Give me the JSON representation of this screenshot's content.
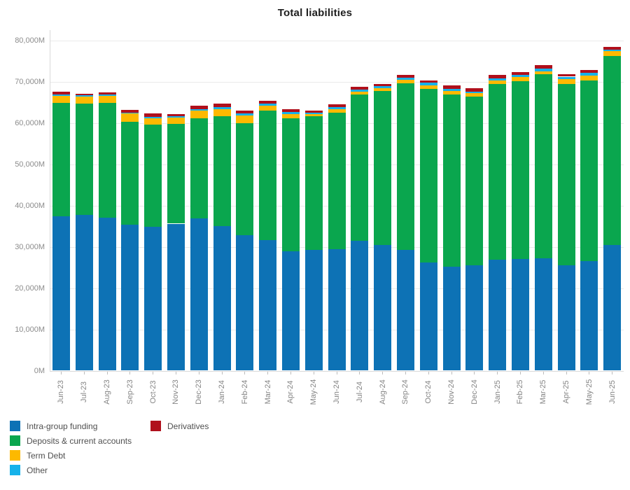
{
  "title": "Total liabilities",
  "chart_data": {
    "type": "bar",
    "stacked": true,
    "title": "Total liabilities",
    "unit": "M",
    "grid": true,
    "ylim": [
      0,
      80000
    ],
    "ytick_step": 10000,
    "ytick_labels": [
      "0M",
      "10,000M",
      "20,000M",
      "30,000M",
      "40,000M",
      "50,000M",
      "60,000M",
      "70,000M",
      "80,000M"
    ],
    "legend_position": "bottom-left",
    "legend_columns": [
      [
        "Intra-group funding",
        "Deposits & current accounts",
        "Term Debt",
        "Other"
      ],
      [
        "Derivatives"
      ]
    ],
    "categories": [
      "Jun-23",
      "Jul-23",
      "Aug-23",
      "Sep-23",
      "Oct-23",
      "Nov-23",
      "Dec-23",
      "Jan-24",
      "Feb-24",
      "Mar-24",
      "Apr-24",
      "May-24",
      "Jun-24",
      "Jul-24",
      "Aug-24",
      "Sep-24",
      "Oct-24",
      "Nov-24",
      "Dec-24",
      "Jan-25",
      "Feb-25",
      "Mar-25",
      "Apr-25",
      "May-25",
      "Jun-25"
    ],
    "series": [
      {
        "name": "Intra-group funding",
        "color": "#0d72b5",
        "values": [
          37400,
          37800,
          37100,
          35300,
          34800,
          35600,
          36950,
          35050,
          32750,
          31600,
          28850,
          29250,
          29450,
          31450,
          30450,
          29300,
          26200,
          25250,
          25450,
          26950,
          27050,
          27150,
          25550,
          26550,
          30450
        ]
      },
      {
        "name": "Deposits & current accounts",
        "color": "#0aa64e",
        "values": [
          27400,
          26900,
          27750,
          25000,
          24850,
          24200,
          24200,
          26550,
          27100,
          31400,
          32250,
          32300,
          33100,
          35350,
          37300,
          40300,
          42100,
          41550,
          40850,
          42450,
          43100,
          44600,
          43800,
          43750,
          45700
        ]
      },
      {
        "name": "Term Debt",
        "color": "#fdb900",
        "values": [
          1800,
          1700,
          1700,
          2000,
          1450,
          1500,
          1800,
          1700,
          1950,
          1200,
          1100,
          500,
          750,
          700,
          650,
          850,
          750,
          1000,
          850,
          900,
          950,
          800,
          1300,
          1150,
          1200
        ]
      },
      {
        "name": "Other",
        "color": "#16b2ea",
        "values": [
          350,
          350,
          250,
          200,
          400,
          350,
          350,
          500,
          500,
          500,
          500,
          450,
          500,
          500,
          450,
          450,
          650,
          450,
          400,
          550,
          600,
          550,
          550,
          650,
          400
        ]
      },
      {
        "name": "Derivatives",
        "color": "#b0101c",
        "values": [
          550,
          350,
          650,
          700,
          850,
          550,
          800,
          800,
          650,
          700,
          700,
          500,
          650,
          750,
          650,
          700,
          500,
          800,
          900,
          800,
          600,
          850,
          550,
          650,
          700
        ]
      }
    ]
  }
}
